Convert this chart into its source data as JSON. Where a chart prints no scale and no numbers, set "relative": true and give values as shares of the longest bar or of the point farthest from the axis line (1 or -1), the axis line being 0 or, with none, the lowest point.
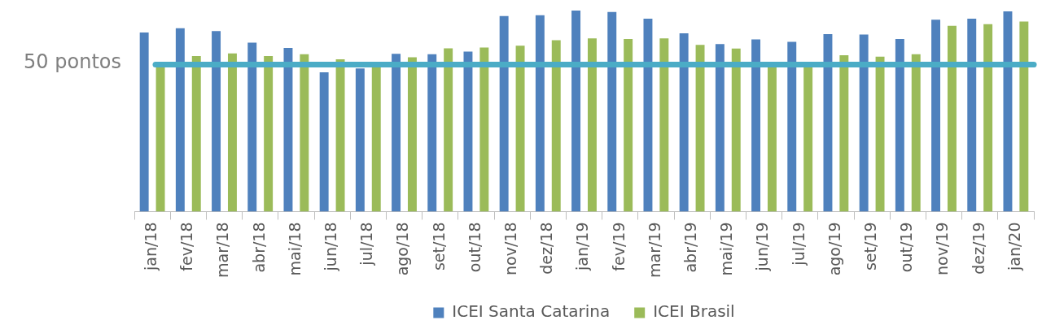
{
  "chart_data": {
    "type": "bar",
    "relative": true,
    "categories": [
      "jan/18",
      "fev/18",
      "mar/18",
      "abr/18",
      "mai/18",
      "jun/18",
      "jul/18",
      "ago/18",
      "set/18",
      "out/18",
      "nov/18",
      "dez/18",
      "jan/19",
      "fev/19",
      "mar/19",
      "abr/19",
      "mai/19",
      "jun/19",
      "jul/19",
      "ago/19",
      "set/19",
      "out/19",
      "nov/19",
      "dez/19",
      "jan/20"
    ],
    "series": [
      {
        "name": "ICEI Santa Catarina",
        "color": "#4f81bd",
        "values": [
          0.891,
          0.912,
          0.898,
          0.84,
          0.814,
          0.693,
          0.712,
          0.785,
          0.783,
          0.796,
          0.973,
          0.977,
          1,
          0.993,
          0.96,
          0.887,
          0.833,
          0.857,
          0.844,
          0.883,
          0.881,
          0.859,
          0.955,
          0.96,
          0.996
        ]
      },
      {
        "name": "ICEI Brasil",
        "color": "#9bbb59",
        "values": [
          0.725,
          0.774,
          0.787,
          0.774,
          0.783,
          0.758,
          0.727,
          0.768,
          0.812,
          0.816,
          0.825,
          0.852,
          0.862,
          0.859,
          0.862,
          0.829,
          0.811,
          0.727,
          0.725,
          0.778,
          0.771,
          0.783,
          0.924,
          0.932,
          0.945
        ]
      }
    ],
    "ref_lines": [
      {
        "axis": "y",
        "value": 0.731,
        "label": "50 pontos",
        "color": "#4bacc6"
      }
    ],
    "legend": "bottom",
    "grid": false
  }
}
